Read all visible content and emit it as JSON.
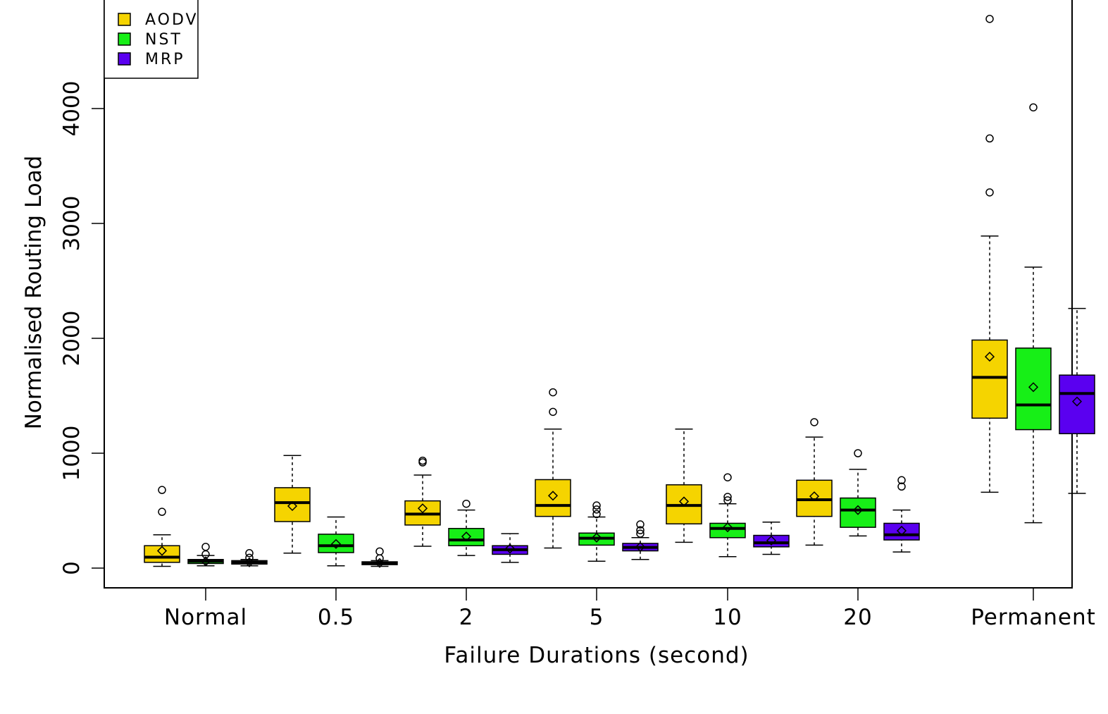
{
  "chart_data": {
    "type": "boxplot",
    "title": "",
    "xlabel": "Failure Durations (second)",
    "ylabel": "Normalised Routing Load",
    "ylim": [
      -180,
      5000
    ],
    "yticks": [
      0,
      1000,
      2000,
      3000,
      4000
    ],
    "categories": [
      "Normal",
      "0.5",
      "2",
      "5",
      "10",
      "20",
      "Permanent"
    ],
    "legend": {
      "position": "top-left",
      "entries": [
        {
          "label": "AODV",
          "color": "#f5d400"
        },
        {
          "label": "NST",
          "color": "#17ef17"
        },
        {
          "label": "MRP",
          "color": "#5a00f0"
        }
      ]
    },
    "series": [
      {
        "name": "AODV",
        "color": "#f5d400",
        "boxes": [
          {
            "category": "Normal",
            "min": 15,
            "q1": 50,
            "median": 95,
            "q3": 195,
            "max": 290,
            "mean": 150,
            "outliers": [
              490,
              680
            ]
          },
          {
            "category": "0.5",
            "min": 130,
            "q1": 405,
            "median": 570,
            "q3": 700,
            "max": 980,
            "mean": 540,
            "outliers": []
          },
          {
            "category": "2",
            "min": 190,
            "q1": 375,
            "median": 470,
            "q3": 585,
            "max": 810,
            "mean": 520,
            "outliers": [
              920,
              935
            ]
          },
          {
            "category": "5",
            "min": 175,
            "q1": 450,
            "median": 545,
            "q3": 770,
            "max": 1210,
            "mean": 630,
            "outliers": [
              1360,
              1530
            ]
          },
          {
            "category": "10",
            "min": 225,
            "q1": 385,
            "median": 545,
            "q3": 725,
            "max": 1210,
            "mean": 580,
            "outliers": []
          },
          {
            "category": "20",
            "min": 200,
            "q1": 450,
            "median": 595,
            "q3": 765,
            "max": 1140,
            "mean": 625,
            "outliers": [
              1270
            ]
          },
          {
            "category": "Permanent",
            "min": 660,
            "q1": 1305,
            "median": 1660,
            "q3": 1985,
            "max": 2890,
            "mean": 1840,
            "outliers": [
              3270,
              3740,
              4780
            ]
          }
        ]
      },
      {
        "name": "NST",
        "color": "#17ef17",
        "boxes": [
          {
            "category": "Normal",
            "min": 20,
            "q1": 40,
            "median": 60,
            "q3": 75,
            "max": 110,
            "mean": 58,
            "outliers": [
              120,
              185
            ]
          },
          {
            "category": "0.5",
            "min": 20,
            "q1": 135,
            "median": 195,
            "q3": 295,
            "max": 445,
            "mean": 210,
            "outliers": []
          },
          {
            "category": "2",
            "min": 110,
            "q1": 195,
            "median": 245,
            "q3": 345,
            "max": 505,
            "mean": 275,
            "outliers": [
              560
            ]
          },
          {
            "category": "5",
            "min": 60,
            "q1": 200,
            "median": 260,
            "q3": 305,
            "max": 445,
            "mean": 265,
            "outliers": [
              470,
              510,
              545
            ]
          },
          {
            "category": "10",
            "min": 100,
            "q1": 265,
            "median": 345,
            "q3": 390,
            "max": 560,
            "mean": 355,
            "outliers": [
              590,
              620,
              790
            ]
          },
          {
            "category": "20",
            "min": 280,
            "q1": 355,
            "median": 505,
            "q3": 610,
            "max": 860,
            "mean": 505,
            "outliers": [
              1000
            ]
          },
          {
            "category": "Permanent",
            "min": 395,
            "q1": 1205,
            "median": 1420,
            "q3": 1915,
            "max": 2620,
            "mean": 1575,
            "outliers": [
              4010
            ]
          }
        ]
      },
      {
        "name": "MRP",
        "color": "#5a00f0",
        "boxes": [
          {
            "category": "Normal",
            "min": 20,
            "q1": 35,
            "median": 50,
            "q3": 65,
            "max": 75,
            "mean": 50,
            "outliers": [
              90,
              130
            ]
          },
          {
            "category": "0.5",
            "min": 15,
            "q1": 30,
            "median": 40,
            "q3": 55,
            "max": 65,
            "mean": 45,
            "outliers": [
              85,
              145
            ]
          },
          {
            "category": "2",
            "min": 50,
            "q1": 120,
            "median": 160,
            "q3": 195,
            "max": 300,
            "mean": 170,
            "outliers": []
          },
          {
            "category": "5",
            "min": 75,
            "q1": 150,
            "median": 180,
            "q3": 215,
            "max": 265,
            "mean": 185,
            "outliers": [
              300,
              330,
              380
            ]
          },
          {
            "category": "10",
            "min": 120,
            "q1": 185,
            "median": 220,
            "q3": 285,
            "max": 400,
            "mean": 240,
            "outliers": []
          },
          {
            "category": "20",
            "min": 140,
            "q1": 245,
            "median": 290,
            "q3": 390,
            "max": 505,
            "mean": 325,
            "outliers": [
              710,
              765
            ]
          },
          {
            "category": "Permanent",
            "min": 650,
            "q1": 1170,
            "median": 1520,
            "q3": 1680,
            "max": 2260,
            "mean": 1450,
            "outliers": []
          }
        ]
      }
    ]
  }
}
